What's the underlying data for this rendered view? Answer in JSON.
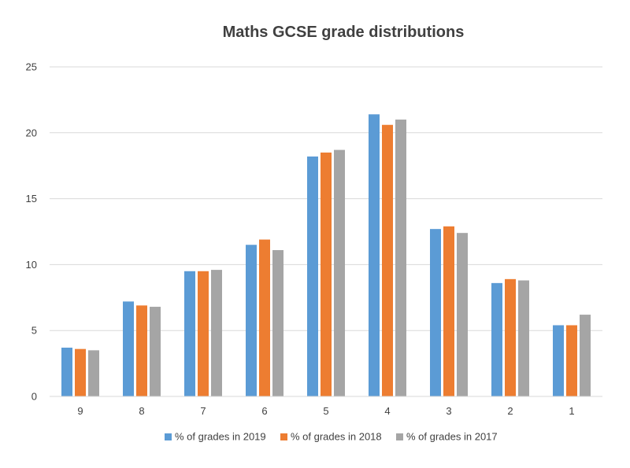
{
  "chart_data": {
    "type": "bar",
    "title": "Maths GCSE grade distributions",
    "xlabel": "",
    "ylabel": "",
    "ylim": [
      0,
      25
    ],
    "yticks": [
      0,
      5,
      10,
      15,
      20,
      25
    ],
    "grid": "horizontal",
    "legend_position": "bottom",
    "categories": [
      "9",
      "8",
      "7",
      "6",
      "5",
      "4",
      "3",
      "2",
      "1"
    ],
    "series": [
      {
        "name": "% of grades in 2019",
        "color": "#5B9BD5",
        "values": [
          3.7,
          7.2,
          9.5,
          11.5,
          18.2,
          21.4,
          12.7,
          8.6,
          5.4
        ]
      },
      {
        "name": "% of grades in 2018",
        "color": "#ED7D31",
        "values": [
          3.6,
          6.9,
          9.5,
          11.9,
          18.5,
          20.6,
          12.9,
          8.9,
          5.4
        ]
      },
      {
        "name": "% of grades in 2017",
        "color": "#A5A5A5",
        "values": [
          3.5,
          6.8,
          9.6,
          11.1,
          18.7,
          21.0,
          12.4,
          8.8,
          6.2
        ]
      }
    ]
  }
}
